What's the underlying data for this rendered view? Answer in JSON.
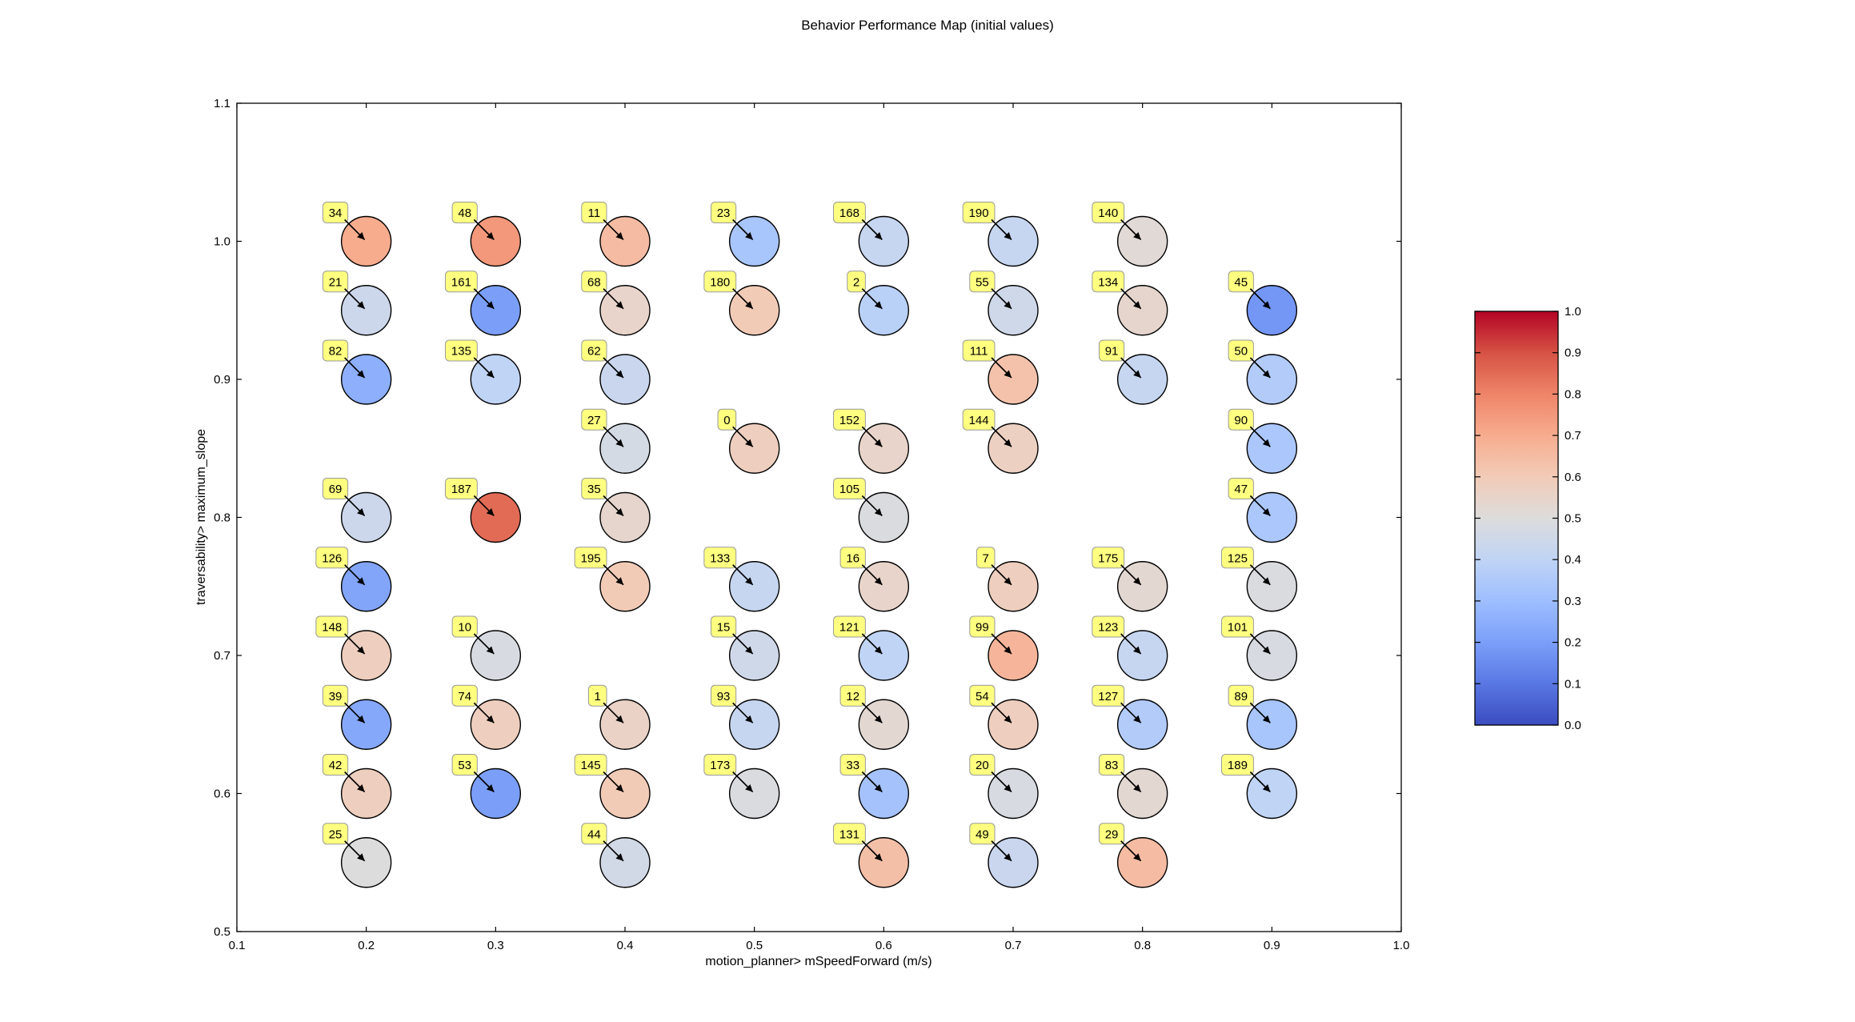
{
  "chart_data": {
    "type": "scatter",
    "title": "Behavior Performance Map (initial values)",
    "xlabel": "motion_planner> mSpeedForward (m/s)",
    "ylabel": "traversability> maximum_slope",
    "xlim": [
      0.1,
      1.0
    ],
    "ylim": [
      0.5,
      1.1
    ],
    "xticks": [
      "0.1",
      "0.2",
      "0.3",
      "0.4",
      "0.5",
      "0.6",
      "0.7",
      "0.8",
      "0.9",
      "1.0"
    ],
    "yticks": [
      "0.5",
      "0.6",
      "0.7",
      "0.8",
      "0.9",
      "1.0",
      "1.1"
    ],
    "grid": false,
    "colormap": "coolwarm",
    "colorbar": {
      "range": [
        0.0,
        1.0
      ],
      "ticks": [
        "0.0",
        "0.1",
        "0.2",
        "0.3",
        "0.4",
        "0.5",
        "0.6",
        "0.7",
        "0.8",
        "0.9",
        "1.0"
      ],
      "colors": [
        "#3b4cc0",
        "#5977e3",
        "#7b9ff9",
        "#9ebeff",
        "#c0d4f5",
        "#dddcdc",
        "#f2cbb7",
        "#f7ac8e",
        "#ee8468",
        "#d65244",
        "#b40426"
      ]
    },
    "annotation_style": {
      "label_bg": "#ffff80",
      "label_border": "#999999",
      "arrow": "black"
    },
    "points": [
      {
        "x": 0.2,
        "y": 1.0,
        "label": "34",
        "value": 0.7
      },
      {
        "x": 0.2,
        "y": 0.95,
        "label": "21",
        "value": 0.44
      },
      {
        "x": 0.2,
        "y": 0.9,
        "label": "82",
        "value": 0.25
      },
      {
        "x": 0.2,
        "y": 0.8,
        "label": "69",
        "value": 0.44
      },
      {
        "x": 0.2,
        "y": 0.75,
        "label": "126",
        "value": 0.22
      },
      {
        "x": 0.2,
        "y": 0.7,
        "label": "148",
        "value": 0.58
      },
      {
        "x": 0.2,
        "y": 0.65,
        "label": "39",
        "value": 0.23
      },
      {
        "x": 0.2,
        "y": 0.6,
        "label": "42",
        "value": 0.58
      },
      {
        "x": 0.2,
        "y": 0.55,
        "label": "25",
        "value": 0.5
      },
      {
        "x": 0.3,
        "y": 1.0,
        "label": "48",
        "value": 0.75
      },
      {
        "x": 0.3,
        "y": 0.95,
        "label": "161",
        "value": 0.2
      },
      {
        "x": 0.3,
        "y": 0.9,
        "label": "135",
        "value": 0.4
      },
      {
        "x": 0.3,
        "y": 0.8,
        "label": "187",
        "value": 0.85
      },
      {
        "x": 0.3,
        "y": 0.7,
        "label": "10",
        "value": 0.48
      },
      {
        "x": 0.3,
        "y": 0.65,
        "label": "74",
        "value": 0.58
      },
      {
        "x": 0.3,
        "y": 0.6,
        "label": "53",
        "value": 0.2
      },
      {
        "x": 0.4,
        "y": 1.0,
        "label": "11",
        "value": 0.65
      },
      {
        "x": 0.4,
        "y": 0.95,
        "label": "68",
        "value": 0.55
      },
      {
        "x": 0.4,
        "y": 0.9,
        "label": "62",
        "value": 0.43
      },
      {
        "x": 0.4,
        "y": 0.85,
        "label": "27",
        "value": 0.47
      },
      {
        "x": 0.4,
        "y": 0.8,
        "label": "35",
        "value": 0.54
      },
      {
        "x": 0.4,
        "y": 0.75,
        "label": "195",
        "value": 0.6
      },
      {
        "x": 0.4,
        "y": 0.65,
        "label": "1",
        "value": 0.56
      },
      {
        "x": 0.4,
        "y": 0.6,
        "label": "145",
        "value": 0.6
      },
      {
        "x": 0.4,
        "y": 0.55,
        "label": "44",
        "value": 0.46
      },
      {
        "x": 0.5,
        "y": 1.0,
        "label": "23",
        "value": 0.33
      },
      {
        "x": 0.5,
        "y": 0.95,
        "label": "180",
        "value": 0.6
      },
      {
        "x": 0.5,
        "y": 0.85,
        "label": "0",
        "value": 0.58
      },
      {
        "x": 0.5,
        "y": 0.75,
        "label": "133",
        "value": 0.42
      },
      {
        "x": 0.5,
        "y": 0.7,
        "label": "15",
        "value": 0.45
      },
      {
        "x": 0.5,
        "y": 0.65,
        "label": "93",
        "value": 0.42
      },
      {
        "x": 0.5,
        "y": 0.6,
        "label": "173",
        "value": 0.49
      },
      {
        "x": 0.6,
        "y": 1.0,
        "label": "168",
        "value": 0.42
      },
      {
        "x": 0.6,
        "y": 0.95,
        "label": "2",
        "value": 0.38
      },
      {
        "x": 0.6,
        "y": 0.85,
        "label": "152",
        "value": 0.55
      },
      {
        "x": 0.6,
        "y": 0.8,
        "label": "105",
        "value": 0.49
      },
      {
        "x": 0.6,
        "y": 0.75,
        "label": "16",
        "value": 0.55
      },
      {
        "x": 0.6,
        "y": 0.7,
        "label": "121",
        "value": 0.4
      },
      {
        "x": 0.6,
        "y": 0.65,
        "label": "12",
        "value": 0.53
      },
      {
        "x": 0.6,
        "y": 0.6,
        "label": "33",
        "value": 0.32
      },
      {
        "x": 0.6,
        "y": 0.55,
        "label": "131",
        "value": 0.64
      },
      {
        "x": 0.7,
        "y": 1.0,
        "label": "190",
        "value": 0.42
      },
      {
        "x": 0.7,
        "y": 0.95,
        "label": "55",
        "value": 0.45
      },
      {
        "x": 0.7,
        "y": 0.9,
        "label": "111",
        "value": 0.63
      },
      {
        "x": 0.7,
        "y": 0.85,
        "label": "144",
        "value": 0.57
      },
      {
        "x": 0.7,
        "y": 0.75,
        "label": "7",
        "value": 0.58
      },
      {
        "x": 0.7,
        "y": 0.7,
        "label": "99",
        "value": 0.67
      },
      {
        "x": 0.7,
        "y": 0.65,
        "label": "54",
        "value": 0.58
      },
      {
        "x": 0.7,
        "y": 0.6,
        "label": "20",
        "value": 0.48
      },
      {
        "x": 0.7,
        "y": 0.55,
        "label": "49",
        "value": 0.43
      },
      {
        "x": 0.8,
        "y": 1.0,
        "label": "140",
        "value": 0.52
      },
      {
        "x": 0.8,
        "y": 0.95,
        "label": "134",
        "value": 0.54
      },
      {
        "x": 0.8,
        "y": 0.9,
        "label": "91",
        "value": 0.42
      },
      {
        "x": 0.8,
        "y": 0.75,
        "label": "175",
        "value": 0.53
      },
      {
        "x": 0.8,
        "y": 0.7,
        "label": "123",
        "value": 0.42
      },
      {
        "x": 0.8,
        "y": 0.65,
        "label": "127",
        "value": 0.36
      },
      {
        "x": 0.8,
        "y": 0.6,
        "label": "83",
        "value": 0.53
      },
      {
        "x": 0.8,
        "y": 0.55,
        "label": "29",
        "value": 0.65
      },
      {
        "x": 0.9,
        "y": 0.95,
        "label": "45",
        "value": 0.18
      },
      {
        "x": 0.9,
        "y": 0.9,
        "label": "50",
        "value": 0.36
      },
      {
        "x": 0.9,
        "y": 0.85,
        "label": "90",
        "value": 0.34
      },
      {
        "x": 0.9,
        "y": 0.8,
        "label": "47",
        "value": 0.34
      },
      {
        "x": 0.9,
        "y": 0.75,
        "label": "125",
        "value": 0.49
      },
      {
        "x": 0.9,
        "y": 0.7,
        "label": "101",
        "value": 0.48
      },
      {
        "x": 0.9,
        "y": 0.65,
        "label": "89",
        "value": 0.33
      },
      {
        "x": 0.9,
        "y": 0.6,
        "label": "189",
        "value": 0.4
      }
    ]
  }
}
